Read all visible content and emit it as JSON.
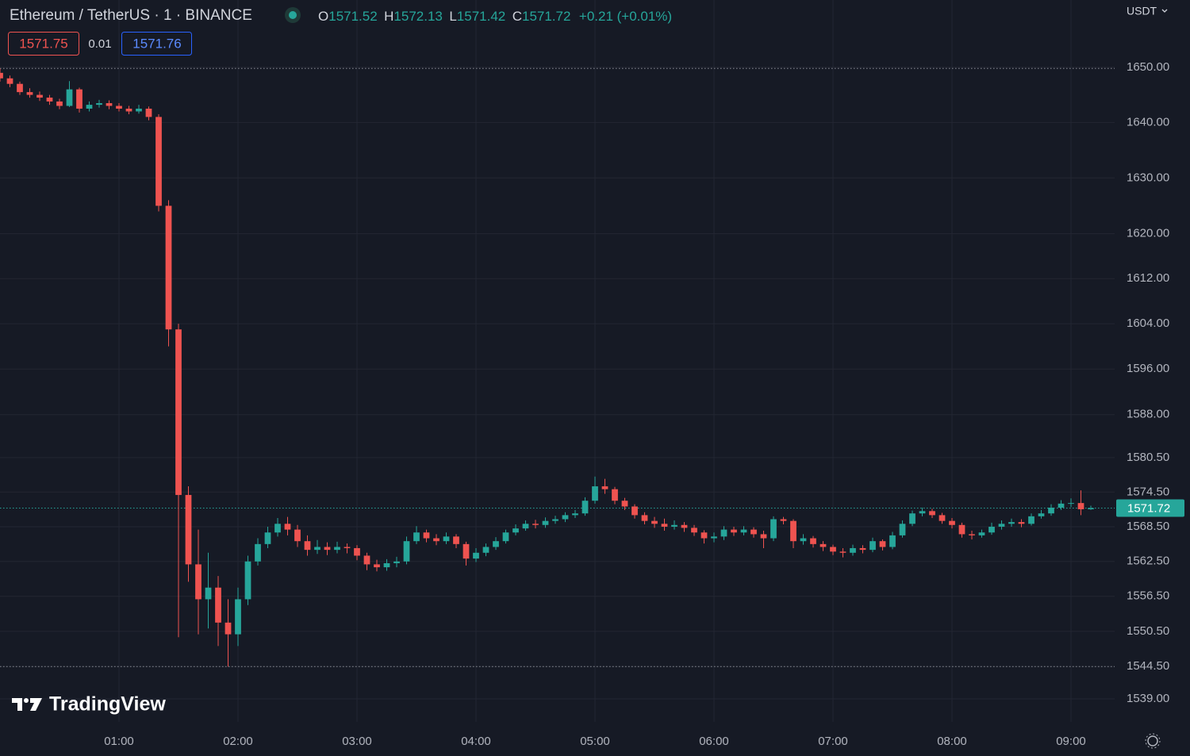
{
  "chart_data": {
    "type": "candlestick",
    "title": "Ethereum / TetherUS · 1 · BINANCE",
    "currency": "USDT",
    "legend": {
      "o_key": "O",
      "o": "1571.52",
      "h_key": "H",
      "h": "1572.13",
      "l_key": "L",
      "l": "1571.42",
      "c_key": "C",
      "c": "1571.72",
      "change": "+0.21 (+0.01%)"
    },
    "bid": "1571.75",
    "spread": "0.01",
    "ask": "1571.76",
    "branding": "TradingView",
    "log_scale": true,
    "grid": true,
    "up_color": "#26a69a",
    "down_color": "#ef5350",
    "x": [
      "00:00",
      "00:05",
      "00:10",
      "00:15",
      "00:20",
      "00:25",
      "00:30",
      "00:35",
      "00:40",
      "00:45",
      "00:50",
      "00:55",
      "01:00",
      "01:05",
      "01:10",
      "01:15",
      "01:20",
      "01:25",
      "01:30",
      "01:35",
      "01:40",
      "01:45",
      "01:50",
      "01:55",
      "02:00",
      "02:05",
      "02:10",
      "02:15",
      "02:20",
      "02:25",
      "02:30",
      "02:35",
      "02:40",
      "02:45",
      "02:50",
      "02:55",
      "03:00",
      "03:05",
      "03:10",
      "03:15",
      "03:20",
      "03:25",
      "03:30",
      "03:35",
      "03:40",
      "03:45",
      "03:50",
      "03:55",
      "04:00",
      "04:05",
      "04:10",
      "04:15",
      "04:20",
      "04:25",
      "04:30",
      "04:35",
      "04:40",
      "04:45",
      "04:50",
      "04:55",
      "05:00",
      "05:05",
      "05:10",
      "05:15",
      "05:20",
      "05:25",
      "05:30",
      "05:35",
      "05:40",
      "05:45",
      "05:50",
      "05:55",
      "06:00",
      "06:05",
      "06:10",
      "06:15",
      "06:20",
      "06:25",
      "06:30",
      "06:35",
      "06:40",
      "06:45",
      "06:50",
      "06:55",
      "07:00",
      "07:05",
      "07:10",
      "07:15",
      "07:20",
      "07:25",
      "07:30",
      "07:35",
      "07:40",
      "07:45",
      "07:50",
      "07:55",
      "08:00",
      "08:05",
      "08:10",
      "08:15",
      "08:20",
      "08:25",
      "08:30",
      "08:35",
      "08:40",
      "08:45",
      "08:50",
      "08:55",
      "09:00",
      "09:05",
      "09:10"
    ],
    "open": [
      1649.0,
      1648.0,
      1647.0,
      1645.5,
      1645.0,
      1644.5,
      1643.8,
      1643.0,
      1646.0,
      1642.5,
      1643.2,
      1643.5,
      1643.0,
      1642.5,
      1642.0,
      1642.5,
      1641.0,
      1625.0,
      1603.0,
      1574.0,
      1562.0,
      1556.0,
      1558.0,
      1552.0,
      1550.0,
      1556.0,
      1562.5,
      1565.5,
      1567.5,
      1569.0,
      1568.0,
      1566.0,
      1564.5,
      1565.0,
      1564.5,
      1565.0,
      1564.8,
      1563.5,
      1562.0,
      1561.5,
      1562.2,
      1562.5,
      1566.0,
      1567.5,
      1566.5,
      1566.0,
      1566.8,
      1565.5,
      1563.0,
      1564.0,
      1565.0,
      1566.0,
      1567.5,
      1568.2,
      1569.0,
      1568.8,
      1569.5,
      1569.8,
      1570.5,
      1570.8,
      1573.0,
      1575.5,
      1575.0,
      1573.0,
      1572.0,
      1570.5,
      1569.5,
      1569.0,
      1568.5,
      1568.8,
      1568.3,
      1567.5,
      1566.5,
      1566.8,
      1568.0,
      1567.5,
      1568.0,
      1567.2,
      1566.5,
      1569.8,
      1569.5,
      1566.0,
      1566.5,
      1565.5,
      1565.0,
      1564.2,
      1564.0,
      1564.8,
      1564.5,
      1566.0,
      1565.0,
      1567.0,
      1569.0,
      1570.8,
      1571.2,
      1570.5,
      1569.5,
      1568.8,
      1567.2,
      1567.0,
      1567.5,
      1568.5,
      1569.0,
      1569.3,
      1569.0,
      1570.3,
      1570.8,
      1571.8,
      1572.5,
      1572.6,
      1571.52
    ],
    "high": [
      1649.8,
      1648.5,
      1647.4,
      1646.2,
      1645.6,
      1645.0,
      1644.3,
      1647.5,
      1646.3,
      1643.8,
      1644.1,
      1644.0,
      1643.5,
      1643.0,
      1643.2,
      1642.9,
      1641.5,
      1626.0,
      1604.0,
      1575.5,
      1568.0,
      1564.0,
      1560.0,
      1556.0,
      1558.0,
      1563.5,
      1566.5,
      1568.5,
      1570.0,
      1570.2,
      1568.8,
      1567.0,
      1566.2,
      1565.8,
      1565.9,
      1565.6,
      1565.3,
      1564.0,
      1562.8,
      1562.9,
      1563.3,
      1566.8,
      1568.6,
      1568.0,
      1567.2,
      1567.5,
      1567.2,
      1565.9,
      1564.8,
      1565.6,
      1566.7,
      1568.0,
      1568.9,
      1569.6,
      1569.7,
      1570.1,
      1570.4,
      1571.0,
      1571.4,
      1573.6,
      1577.2,
      1576.8,
      1575.4,
      1573.5,
      1572.4,
      1571.0,
      1570.2,
      1569.9,
      1569.6,
      1569.3,
      1568.8,
      1567.9,
      1567.5,
      1568.6,
      1568.5,
      1568.6,
      1568.4,
      1567.8,
      1570.3,
      1570.2,
      1569.8,
      1567.2,
      1566.9,
      1566.0,
      1565.4,
      1564.8,
      1565.4,
      1565.3,
      1566.6,
      1566.3,
      1567.6,
      1569.6,
      1571.3,
      1571.8,
      1571.6,
      1570.9,
      1570.0,
      1569.2,
      1567.8,
      1568.0,
      1569.2,
      1569.6,
      1569.9,
      1569.8,
      1570.8,
      1571.4,
      1572.4,
      1573.1,
      1573.4,
      1574.8,
      1572.13
    ],
    "low": [
      1647.4,
      1646.4,
      1645.0,
      1644.5,
      1643.9,
      1643.2,
      1642.4,
      1642.8,
      1641.8,
      1642.0,
      1642.7,
      1642.4,
      1642.0,
      1641.5,
      1641.6,
      1640.4,
      1624.0,
      1600.0,
      1549.5,
      1559.0,
      1550.0,
      1551.0,
      1548.0,
      1544.5,
      1548.0,
      1555.0,
      1561.8,
      1564.8,
      1566.8,
      1567.0,
      1565.0,
      1563.5,
      1563.8,
      1563.6,
      1563.9,
      1563.9,
      1562.7,
      1561.0,
      1560.8,
      1560.9,
      1561.5,
      1562.0,
      1565.5,
      1565.8,
      1565.3,
      1565.5,
      1564.8,
      1561.8,
      1562.4,
      1563.4,
      1564.5,
      1565.6,
      1567.0,
      1567.8,
      1568.2,
      1568.3,
      1569.0,
      1569.3,
      1570.0,
      1570.4,
      1572.5,
      1574.2,
      1572.4,
      1571.4,
      1569.9,
      1568.9,
      1568.3,
      1567.8,
      1568.0,
      1567.6,
      1566.9,
      1565.6,
      1565.8,
      1566.2,
      1566.9,
      1567.0,
      1566.6,
      1564.8,
      1566.0,
      1568.9,
      1564.8,
      1565.4,
      1564.9,
      1564.3,
      1563.6,
      1563.2,
      1563.5,
      1563.9,
      1564.1,
      1564.4,
      1564.6,
      1566.6,
      1568.6,
      1570.3,
      1570.0,
      1569.0,
      1568.2,
      1566.6,
      1566.3,
      1566.6,
      1567.1,
      1568.0,
      1568.5,
      1568.4,
      1568.7,
      1569.9,
      1570.4,
      1571.4,
      1571.9,
      1570.5,
      1571.42
    ],
    "close": [
      1648.0,
      1647.0,
      1645.5,
      1645.0,
      1644.5,
      1643.8,
      1643.0,
      1646.0,
      1642.5,
      1643.2,
      1643.5,
      1643.0,
      1642.5,
      1642.0,
      1642.5,
      1641.0,
      1625.0,
      1603.0,
      1574.0,
      1562.0,
      1556.0,
      1558.0,
      1552.0,
      1550.0,
      1556.0,
      1562.5,
      1565.5,
      1567.5,
      1569.0,
      1568.0,
      1566.0,
      1564.5,
      1565.0,
      1564.5,
      1565.0,
      1564.8,
      1563.5,
      1562.0,
      1561.5,
      1562.2,
      1562.5,
      1566.0,
      1567.5,
      1566.5,
      1566.0,
      1566.8,
      1565.5,
      1563.0,
      1564.0,
      1565.0,
      1566.0,
      1567.5,
      1568.2,
      1569.0,
      1568.8,
      1569.5,
      1569.8,
      1570.5,
      1570.8,
      1573.0,
      1575.5,
      1575.0,
      1573.0,
      1572.0,
      1570.5,
      1569.5,
      1569.0,
      1568.5,
      1568.8,
      1568.3,
      1567.5,
      1566.5,
      1566.8,
      1568.0,
      1567.5,
      1568.0,
      1567.2,
      1566.5,
      1569.8,
      1569.5,
      1566.0,
      1566.5,
      1565.5,
      1565.0,
      1564.2,
      1564.0,
      1564.8,
      1564.5,
      1566.0,
      1565.0,
      1567.0,
      1569.0,
      1570.8,
      1571.2,
      1570.5,
      1569.5,
      1568.8,
      1567.2,
      1567.0,
      1567.5,
      1568.5,
      1569.0,
      1569.3,
      1569.0,
      1570.3,
      1570.8,
      1571.8,
      1572.5,
      1572.6,
      1571.52,
      1571.72
    ],
    "last_price": {
      "value": 1571.72,
      "label": "1571.72",
      "color": "#26a69a"
    },
    "price_lines": [
      1649.8,
      1544.5
    ],
    "xlim": [
      "00:00",
      "09:22"
    ],
    "xticks": [
      "01:00",
      "02:00",
      "03:00",
      "04:00",
      "05:00",
      "06:00",
      "07:00",
      "08:00",
      "09:00"
    ],
    "ylim": [
      1535.1,
      1662.3
    ],
    "yticks": [
      {
        "value": 1650,
        "label": "1650.00"
      },
      {
        "value": 1640,
        "label": "1640.00"
      },
      {
        "value": 1630,
        "label": "1630.00"
      },
      {
        "value": 1620,
        "label": "1620.00"
      },
      {
        "value": 1612,
        "label": "1612.00"
      },
      {
        "value": 1604,
        "label": "1604.00"
      },
      {
        "value": 1596,
        "label": "1596.00"
      },
      {
        "value": 1588,
        "label": "1588.00"
      },
      {
        "value": 1580.5,
        "label": "1580.50"
      },
      {
        "value": 1574.5,
        "label": "1574.50"
      },
      {
        "value": 1568.5,
        "label": "1568.50"
      },
      {
        "value": 1562.5,
        "label": "1562.50"
      },
      {
        "value": 1556.5,
        "label": "1556.50"
      },
      {
        "value": 1550.5,
        "label": "1550.50"
      },
      {
        "value": 1544.5,
        "label": "1544.50"
      },
      {
        "value": 1539,
        "label": "1539.00"
      }
    ]
  }
}
